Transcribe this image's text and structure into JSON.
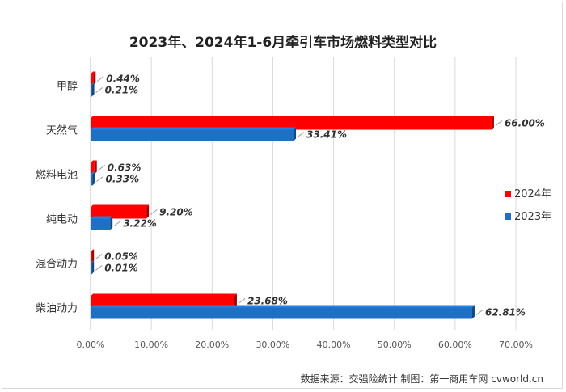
{
  "chart_data": {
    "type": "bar",
    "orientation": "horizontal",
    "title": "2023年、2024年1-6月牵引车市场燃料类型对比",
    "categories": [
      "甲醇",
      "天然气",
      "燃料电池",
      "纯电动",
      "混合动力",
      "柴油动力"
    ],
    "series": [
      {
        "name": "2024年",
        "color": "#ff0000",
        "values": [
          0.44,
          66.0,
          0.63,
          9.2,
          0.05,
          23.68
        ],
        "labels": [
          "0.44%",
          "66.00%",
          "0.63%",
          "9.20%",
          "0.05%",
          "23.68%"
        ]
      },
      {
        "name": "2023年",
        "color": "#1f6fc5",
        "values": [
          0.21,
          33.41,
          0.33,
          3.22,
          0.01,
          62.81
        ],
        "labels": [
          "0.21%",
          "33.41%",
          "0.33%",
          "3.22%",
          "0.01%",
          "62.81%"
        ]
      }
    ],
    "xlim": [
      0,
      70
    ],
    "xticks": [
      "0.00%",
      "10.00%",
      "20.00%",
      "30.00%",
      "40.00%",
      "50.00%",
      "60.00%",
      "70.00%"
    ],
    "grid": true,
    "legend": "right"
  },
  "source_text": "数据来源：交强险统计   制图：第一商用车网 cvworld.cn"
}
